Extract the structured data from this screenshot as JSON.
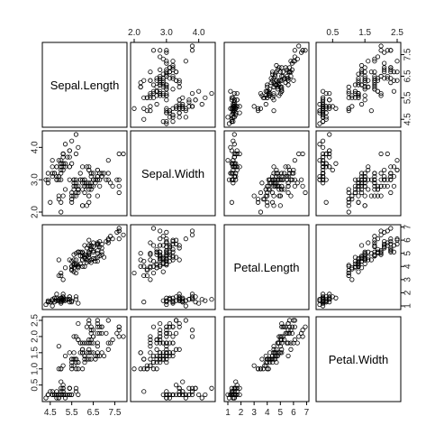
{
  "chart_data": {
    "type": "scatter",
    "subtype": "pairs-matrix",
    "title": "",
    "variables": [
      "Sepal.Length",
      "Sepal.Width",
      "Petal.Length",
      "Petal.Width"
    ],
    "ranges": [
      [
        4.3,
        7.9
      ],
      [
        2.0,
        4.4
      ],
      [
        1.0,
        6.9
      ],
      [
        0.1,
        2.5
      ]
    ],
    "ticks": [
      [
        4.5,
        5.5,
        6.5,
        7.5
      ],
      [
        2.0,
        3.0,
        4.0
      ],
      [
        1,
        2,
        3,
        4,
        5,
        6,
        7
      ],
      [
        0.5,
        1.5,
        2.5
      ]
    ],
    "tick_labels": [
      [
        "4.5",
        "5.5",
        "6.5",
        "7.5"
      ],
      [
        "2.0",
        "3.0",
        "4.0"
      ],
      [
        "1",
        "2",
        "3",
        "4",
        "5",
        "6",
        "7"
      ],
      [
        "0.5",
        "1.5",
        "2.5"
      ]
    ],
    "tick_labels_minor": [
      [],
      [],
      [],
      [
        "1.0",
        "2.0"
      ]
    ],
    "point_style": "open-circle",
    "grid": false,
    "data": [
      [
        5.1,
        3.5,
        1.4,
        0.2
      ],
      [
        4.9,
        3.0,
        1.4,
        0.2
      ],
      [
        4.7,
        3.2,
        1.3,
        0.2
      ],
      [
        4.6,
        3.1,
        1.5,
        0.2
      ],
      [
        5.0,
        3.6,
        1.4,
        0.2
      ],
      [
        5.4,
        3.9,
        1.7,
        0.4
      ],
      [
        4.6,
        3.4,
        1.4,
        0.3
      ],
      [
        5.0,
        3.4,
        1.5,
        0.2
      ],
      [
        4.4,
        2.9,
        1.4,
        0.2
      ],
      [
        4.9,
        3.1,
        1.5,
        0.1
      ],
      [
        5.4,
        3.7,
        1.5,
        0.2
      ],
      [
        4.8,
        3.4,
        1.6,
        0.2
      ],
      [
        4.8,
        3.0,
        1.4,
        0.1
      ],
      [
        4.3,
        3.0,
        1.1,
        0.1
      ],
      [
        5.8,
        4.0,
        1.2,
        0.2
      ],
      [
        5.7,
        4.4,
        1.5,
        0.4
      ],
      [
        5.4,
        3.9,
        1.3,
        0.4
      ],
      [
        5.1,
        3.5,
        1.4,
        0.3
      ],
      [
        5.7,
        3.8,
        1.7,
        0.3
      ],
      [
        5.1,
        3.8,
        1.5,
        0.3
      ],
      [
        5.4,
        3.4,
        1.7,
        0.2
      ],
      [
        5.1,
        3.7,
        1.5,
        0.4
      ],
      [
        4.6,
        3.6,
        1.0,
        0.2
      ],
      [
        5.1,
        3.3,
        1.7,
        0.5
      ],
      [
        4.8,
        3.4,
        1.9,
        0.2
      ],
      [
        5.0,
        3.0,
        1.6,
        0.2
      ],
      [
        5.0,
        3.4,
        1.6,
        0.4
      ],
      [
        5.2,
        3.5,
        1.5,
        0.2
      ],
      [
        5.2,
        3.4,
        1.4,
        0.2
      ],
      [
        4.7,
        3.2,
        1.6,
        0.2
      ],
      [
        4.8,
        3.1,
        1.6,
        0.2
      ],
      [
        5.4,
        3.4,
        1.5,
        0.4
      ],
      [
        5.2,
        4.1,
        1.5,
        0.1
      ],
      [
        5.5,
        4.2,
        1.4,
        0.2
      ],
      [
        4.9,
        3.1,
        1.5,
        0.2
      ],
      [
        5.0,
        3.2,
        1.2,
        0.2
      ],
      [
        5.5,
        3.5,
        1.3,
        0.2
      ],
      [
        4.9,
        3.6,
        1.4,
        0.1
      ],
      [
        4.4,
        3.0,
        1.3,
        0.2
      ],
      [
        5.1,
        3.4,
        1.5,
        0.2
      ],
      [
        5.0,
        3.5,
        1.3,
        0.3
      ],
      [
        4.5,
        2.3,
        1.3,
        0.3
      ],
      [
        4.4,
        3.2,
        1.3,
        0.2
      ],
      [
        5.0,
        3.5,
        1.6,
        0.6
      ],
      [
        5.1,
        3.8,
        1.9,
        0.4
      ],
      [
        4.8,
        3.0,
        1.4,
        0.3
      ],
      [
        5.1,
        3.8,
        1.6,
        0.2
      ],
      [
        4.6,
        3.2,
        1.4,
        0.2
      ],
      [
        5.3,
        3.7,
        1.5,
        0.2
      ],
      [
        5.0,
        3.3,
        1.4,
        0.2
      ],
      [
        7.0,
        3.2,
        4.7,
        1.4
      ],
      [
        6.4,
        3.2,
        4.5,
        1.5
      ],
      [
        6.9,
        3.1,
        4.9,
        1.5
      ],
      [
        5.5,
        2.3,
        4.0,
        1.3
      ],
      [
        6.5,
        2.8,
        4.6,
        1.5
      ],
      [
        5.7,
        2.8,
        4.5,
        1.3
      ],
      [
        6.3,
        3.3,
        4.7,
        1.6
      ],
      [
        4.9,
        2.4,
        3.3,
        1.0
      ],
      [
        6.6,
        2.9,
        4.6,
        1.3
      ],
      [
        5.2,
        2.7,
        3.9,
        1.4
      ],
      [
        5.0,
        2.0,
        3.5,
        1.0
      ],
      [
        5.9,
        3.0,
        4.2,
        1.5
      ],
      [
        6.0,
        2.2,
        4.0,
        1.0
      ],
      [
        6.1,
        2.9,
        4.7,
        1.4
      ],
      [
        5.6,
        2.9,
        3.6,
        1.3
      ],
      [
        6.7,
        3.1,
        4.4,
        1.4
      ],
      [
        5.6,
        3.0,
        4.5,
        1.5
      ],
      [
        5.8,
        2.7,
        4.1,
        1.0
      ],
      [
        6.2,
        2.2,
        4.5,
        1.5
      ],
      [
        5.6,
        2.5,
        3.9,
        1.1
      ],
      [
        5.9,
        3.2,
        4.8,
        1.8
      ],
      [
        6.1,
        2.8,
        4.0,
        1.3
      ],
      [
        6.3,
        2.5,
        4.9,
        1.5
      ],
      [
        6.1,
        2.8,
        4.7,
        1.2
      ],
      [
        6.4,
        2.9,
        4.3,
        1.3
      ],
      [
        6.6,
        3.0,
        4.4,
        1.4
      ],
      [
        6.8,
        2.8,
        4.8,
        1.4
      ],
      [
        6.7,
        3.0,
        5.0,
        1.7
      ],
      [
        6.0,
        2.9,
        4.5,
        1.5
      ],
      [
        5.7,
        2.6,
        3.5,
        1.0
      ],
      [
        5.5,
        2.4,
        3.8,
        1.1
      ],
      [
        5.5,
        2.4,
        3.7,
        1.0
      ],
      [
        5.8,
        2.7,
        3.9,
        1.2
      ],
      [
        6.0,
        2.7,
        5.1,
        1.6
      ],
      [
        5.4,
        3.0,
        4.5,
        1.5
      ],
      [
        6.0,
        3.4,
        4.5,
        1.6
      ],
      [
        6.7,
        3.1,
        4.7,
        1.5
      ],
      [
        6.3,
        2.3,
        4.4,
        1.3
      ],
      [
        5.6,
        3.0,
        4.1,
        1.3
      ],
      [
        5.5,
        2.5,
        4.0,
        1.3
      ],
      [
        5.5,
        2.6,
        4.4,
        1.2
      ],
      [
        6.1,
        3.0,
        4.6,
        1.4
      ],
      [
        5.8,
        2.6,
        4.0,
        1.2
      ],
      [
        5.0,
        2.3,
        3.3,
        1.0
      ],
      [
        5.6,
        2.7,
        4.2,
        1.3
      ],
      [
        5.7,
        3.0,
        4.2,
        1.2
      ],
      [
        5.7,
        2.9,
        4.2,
        1.3
      ],
      [
        6.2,
        2.9,
        4.3,
        1.3
      ],
      [
        5.1,
        2.5,
        3.0,
        1.1
      ],
      [
        5.7,
        2.8,
        4.1,
        1.3
      ],
      [
        6.3,
        3.3,
        6.0,
        2.5
      ],
      [
        5.8,
        2.7,
        5.1,
        1.9
      ],
      [
        7.1,
        3.0,
        5.9,
        2.1
      ],
      [
        6.3,
        2.9,
        5.6,
        1.8
      ],
      [
        6.5,
        3.0,
        5.8,
        2.2
      ],
      [
        7.6,
        3.0,
        6.6,
        2.1
      ],
      [
        4.9,
        2.5,
        4.5,
        1.7
      ],
      [
        7.3,
        2.9,
        6.3,
        1.8
      ],
      [
        6.7,
        2.5,
        5.8,
        1.8
      ],
      [
        7.2,
        3.6,
        6.1,
        2.5
      ],
      [
        6.5,
        3.2,
        5.1,
        2.0
      ],
      [
        6.4,
        2.7,
        5.3,
        1.9
      ],
      [
        6.8,
        3.0,
        5.5,
        2.1
      ],
      [
        5.7,
        2.5,
        5.0,
        2.0
      ],
      [
        5.8,
        2.8,
        5.1,
        2.4
      ],
      [
        6.4,
        3.2,
        5.3,
        2.3
      ],
      [
        6.5,
        3.0,
        5.5,
        1.8
      ],
      [
        7.7,
        3.8,
        6.7,
        2.2
      ],
      [
        7.7,
        2.6,
        6.9,
        2.3
      ],
      [
        6.0,
        2.2,
        5.0,
        1.5
      ],
      [
        6.9,
        3.2,
        5.7,
        2.3
      ],
      [
        5.6,
        2.8,
        4.9,
        2.0
      ],
      [
        7.7,
        2.8,
        6.7,
        2.0
      ],
      [
        6.3,
        2.7,
        4.9,
        1.8
      ],
      [
        6.7,
        3.3,
        5.7,
        2.1
      ],
      [
        7.2,
        3.2,
        6.0,
        1.8
      ],
      [
        6.2,
        2.8,
        4.8,
        1.8
      ],
      [
        6.1,
        3.0,
        4.9,
        1.8
      ],
      [
        6.4,
        2.8,
        5.6,
        2.1
      ],
      [
        7.2,
        3.0,
        5.8,
        1.6
      ],
      [
        7.4,
        2.8,
        6.1,
        1.9
      ],
      [
        7.9,
        3.8,
        6.4,
        2.0
      ],
      [
        6.4,
        2.8,
        5.6,
        2.2
      ],
      [
        6.3,
        2.8,
        5.1,
        1.5
      ],
      [
        6.1,
        2.6,
        5.6,
        1.4
      ],
      [
        7.7,
        3.0,
        6.1,
        2.3
      ],
      [
        6.3,
        3.4,
        5.6,
        2.4
      ],
      [
        6.4,
        3.1,
        5.5,
        1.8
      ],
      [
        6.0,
        3.0,
        4.8,
        1.8
      ],
      [
        6.9,
        3.1,
        5.4,
        2.1
      ],
      [
        6.7,
        3.1,
        5.6,
        2.4
      ],
      [
        6.9,
        3.1,
        5.1,
        2.3
      ],
      [
        5.8,
        2.7,
        5.1,
        1.9
      ],
      [
        6.8,
        3.2,
        5.9,
        2.3
      ],
      [
        6.7,
        3.3,
        5.7,
        2.5
      ],
      [
        6.7,
        3.0,
        5.2,
        2.3
      ],
      [
        6.3,
        2.5,
        5.0,
        1.9
      ],
      [
        6.5,
        3.0,
        5.2,
        2.0
      ],
      [
        6.2,
        3.4,
        5.4,
        2.3
      ],
      [
        5.9,
        3.0,
        5.1,
        1.8
      ]
    ]
  }
}
